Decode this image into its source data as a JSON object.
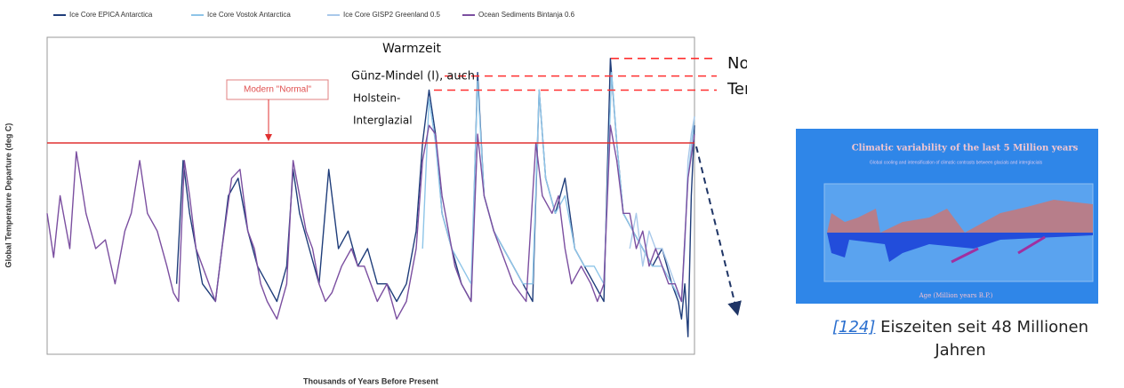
{
  "chart_data": {
    "type": "line",
    "xlabel": "Thousands of Years Before Present",
    "ylabel": "Global Temperature Departure (deg C)",
    "xlim": [
      1000,
      0
    ],
    "xticks": [
      1000,
      900,
      800,
      700,
      600,
      500,
      400,
      300,
      200,
      100,
      0
    ],
    "ylim": [
      -12,
      6
    ],
    "yticks": [
      -12,
      -10,
      -8,
      -6,
      -4,
      -2,
      0,
      2,
      4,
      6
    ],
    "grid": true,
    "series": [
      {
        "name": "Ice Core EPICA  Antarctica",
        "color": "#1f3d7a",
        "x": [
          800,
          790,
          780,
          770,
          760,
          750,
          740,
          720,
          705,
          690,
          675,
          660,
          645,
          630,
          620,
          610,
          595,
          580,
          565,
          550,
          535,
          520,
          505,
          490,
          475,
          460,
          445,
          430,
          420,
          410,
          400,
          390,
          375,
          360,
          345,
          335,
          325,
          310,
          295,
          280,
          265,
          250,
          240,
          230,
          215,
          200,
          185,
          170,
          155,
          140,
          130,
          120,
          110,
          95,
          80,
          65,
          50,
          35,
          25,
          20,
          15,
          10,
          5,
          0
        ],
        "values": [
          -8,
          -1,
          -4,
          -6,
          -8,
          -8.5,
          -9,
          -3,
          -2,
          -5,
          -7,
          -8,
          -9,
          -7,
          -1.5,
          -4,
          -6,
          -8,
          -1.5,
          -6,
          -5,
          -7,
          -6,
          -8,
          -8,
          -9,
          -8,
          -5,
          0,
          3,
          0.5,
          -4,
          -6,
          -8,
          -9,
          4,
          -3,
          -5,
          -6,
          -7,
          -8,
          -9,
          3,
          -2,
          -4,
          -2,
          -6,
          -7,
          -8,
          -9,
          4.8,
          0,
          -4,
          -5,
          -6,
          -7,
          -6,
          -8,
          -9,
          -10,
          -8,
          -11,
          -3,
          1
        ]
      },
      {
        "name": "Ice Core Vostok  Antarctica",
        "color": "#8ec5e8",
        "x": [
          420,
          410,
          400,
          390,
          375,
          360,
          345,
          335,
          325,
          310,
          295,
          280,
          265,
          250,
          240,
          230,
          215,
          200,
          185,
          170,
          155,
          140,
          128,
          120,
          110,
          95,
          80,
          65,
          50,
          35,
          20,
          10,
          0
        ],
        "values": [
          -6,
          2.5,
          0,
          -4,
          -6,
          -7,
          -8,
          3.5,
          -3,
          -5,
          -6,
          -7,
          -8,
          -8,
          3,
          -2,
          -4,
          -3,
          -6,
          -7,
          -7,
          -8,
          4,
          0,
          -4,
          -5,
          -6,
          -7,
          -7,
          -8,
          -9,
          -2,
          1.5
        ]
      },
      {
        "name": "Ice Core GISP2  Greenland 0.5",
        "color": "#a9c9ea",
        "x": [
          100,
          90,
          80,
          70,
          60,
          50,
          40,
          30,
          20,
          15,
          10,
          5,
          0
        ],
        "values": [
          -6,
          -4,
          -7,
          -5,
          -6,
          -6,
          -7,
          -8,
          -9,
          -6,
          -1,
          0.5,
          1.5
        ]
      },
      {
        "name": "Ocean Sediments Bintanja  0.6",
        "color": "#7b4fa0",
        "x": [
          1000,
          990,
          980,
          965,
          955,
          940,
          925,
          910,
          895,
          880,
          870,
          857,
          845,
          830,
          815,
          805,
          797,
          788,
          780,
          770,
          760,
          750,
          740,
          730,
          715,
          702,
          690,
          680,
          670,
          660,
          645,
          630,
          620,
          610,
          600,
          590,
          580,
          570,
          560,
          545,
          530,
          520,
          510,
          500,
          490,
          475,
          460,
          445,
          430,
          420,
          410,
          400,
          390,
          380,
          370,
          360,
          345,
          335,
          325,
          310,
          300,
          290,
          280,
          270,
          260,
          245,
          235,
          220,
          210,
          200,
          190,
          175,
          160,
          150,
          140,
          130,
          120,
          110,
          100,
          90,
          80,
          70,
          60,
          50,
          40,
          30,
          20,
          10,
          0
        ],
        "values": [
          -4,
          -6.5,
          -3,
          -6,
          -0.5,
          -4,
          -6,
          -5.5,
          -8,
          -5,
          -4,
          -1,
          -4,
          -5,
          -7,
          -8.5,
          -9,
          -1,
          -3,
          -6,
          -7,
          -8,
          -9,
          -6,
          -2,
          -1.5,
          -5,
          -6,
          -8,
          -9,
          -10,
          -8,
          -1,
          -3,
          -5,
          -6,
          -8,
          -9,
          -8.5,
          -7,
          -6,
          -7,
          -7,
          -8,
          -9,
          -8,
          -10,
          -9,
          -6,
          -1,
          1,
          0.5,
          -3,
          -5,
          -7,
          -8,
          -9,
          0.5,
          -3,
          -5,
          -6,
          -7,
          -8,
          -8.5,
          -9,
          0,
          -3,
          -4,
          -3,
          -6,
          -8,
          -7,
          -8,
          -9,
          -8,
          1,
          -1,
          -4,
          -4,
          -6,
          -5,
          -7,
          -6,
          -7,
          -8,
          -8,
          -9,
          -2,
          0.5
        ]
      }
    ],
    "reference_line": {
      "value": 0,
      "label": "Modern \"Normal\"",
      "color": "#e03030"
    },
    "dashed_levels": [
      4.8,
      3.8,
      3.0
    ],
    "annotations": [
      "Warmzeit",
      "Günz-Mindel (I), auch",
      "Holstein-",
      "Interglazial",
      "Noch nicht erreichte",
      "Temperaturen"
    ]
  },
  "inset": {
    "title": "Climatic variability of the last 5 Million years",
    "subtitle": "Global cooling and intensification of climatic contrasts between glacials and interglacials",
    "xlabel": "Age (Million years B.P.)"
  },
  "caption": {
    "ref": "[124]",
    "text": "Eiszeiten seit 48 Millionen Jahren"
  }
}
